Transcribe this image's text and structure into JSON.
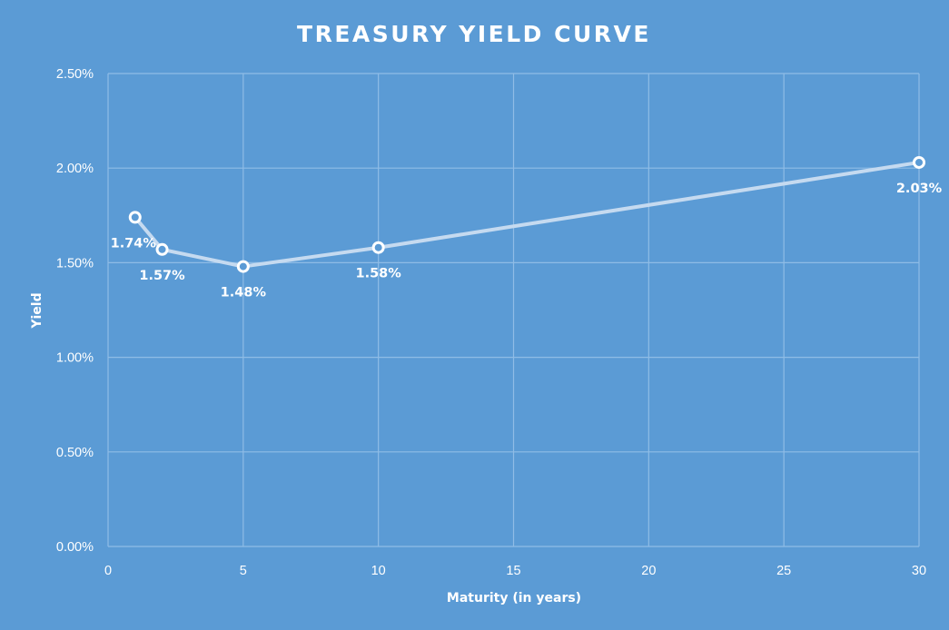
{
  "chart_data": {
    "type": "scatter",
    "title": "TREASURY YIELD CURVE",
    "xlabel": "Maturity (in years)",
    "ylabel": "Yield",
    "xlim": [
      0,
      30
    ],
    "ylim": [
      0,
      0.025
    ],
    "x_ticks": [
      0,
      5,
      10,
      15,
      20,
      25,
      30
    ],
    "x_tick_labels": [
      "0",
      "5",
      "10",
      "15",
      "20",
      "25",
      "30"
    ],
    "y_ticks": [
      0,
      0.005,
      0.01,
      0.015,
      0.02,
      0.025
    ],
    "y_tick_labels": [
      "0.00%",
      "0.50%",
      "1.00%",
      "1.50%",
      "2.00%",
      "2.50%"
    ],
    "grid": true,
    "legend": "none",
    "series": [
      {
        "x": [
          1,
          2,
          5,
          10,
          30
        ],
        "y": [
          0.0174,
          0.0157,
          0.0148,
          0.0158,
          0.0203
        ],
        "labels": [
          "1.74%",
          "1.57%",
          "1.48%",
          "1.58%",
          "2.03%"
        ],
        "label_positions": [
          "below",
          "below",
          "below",
          "below",
          "below"
        ]
      }
    ],
    "colors": {
      "background": "#5b9bd5",
      "line": "#c5daf0",
      "marker_fill": "#5b9bd5",
      "marker_stroke": "#ffffff",
      "grid": "#8fbce6",
      "text": "#ffffff"
    }
  }
}
